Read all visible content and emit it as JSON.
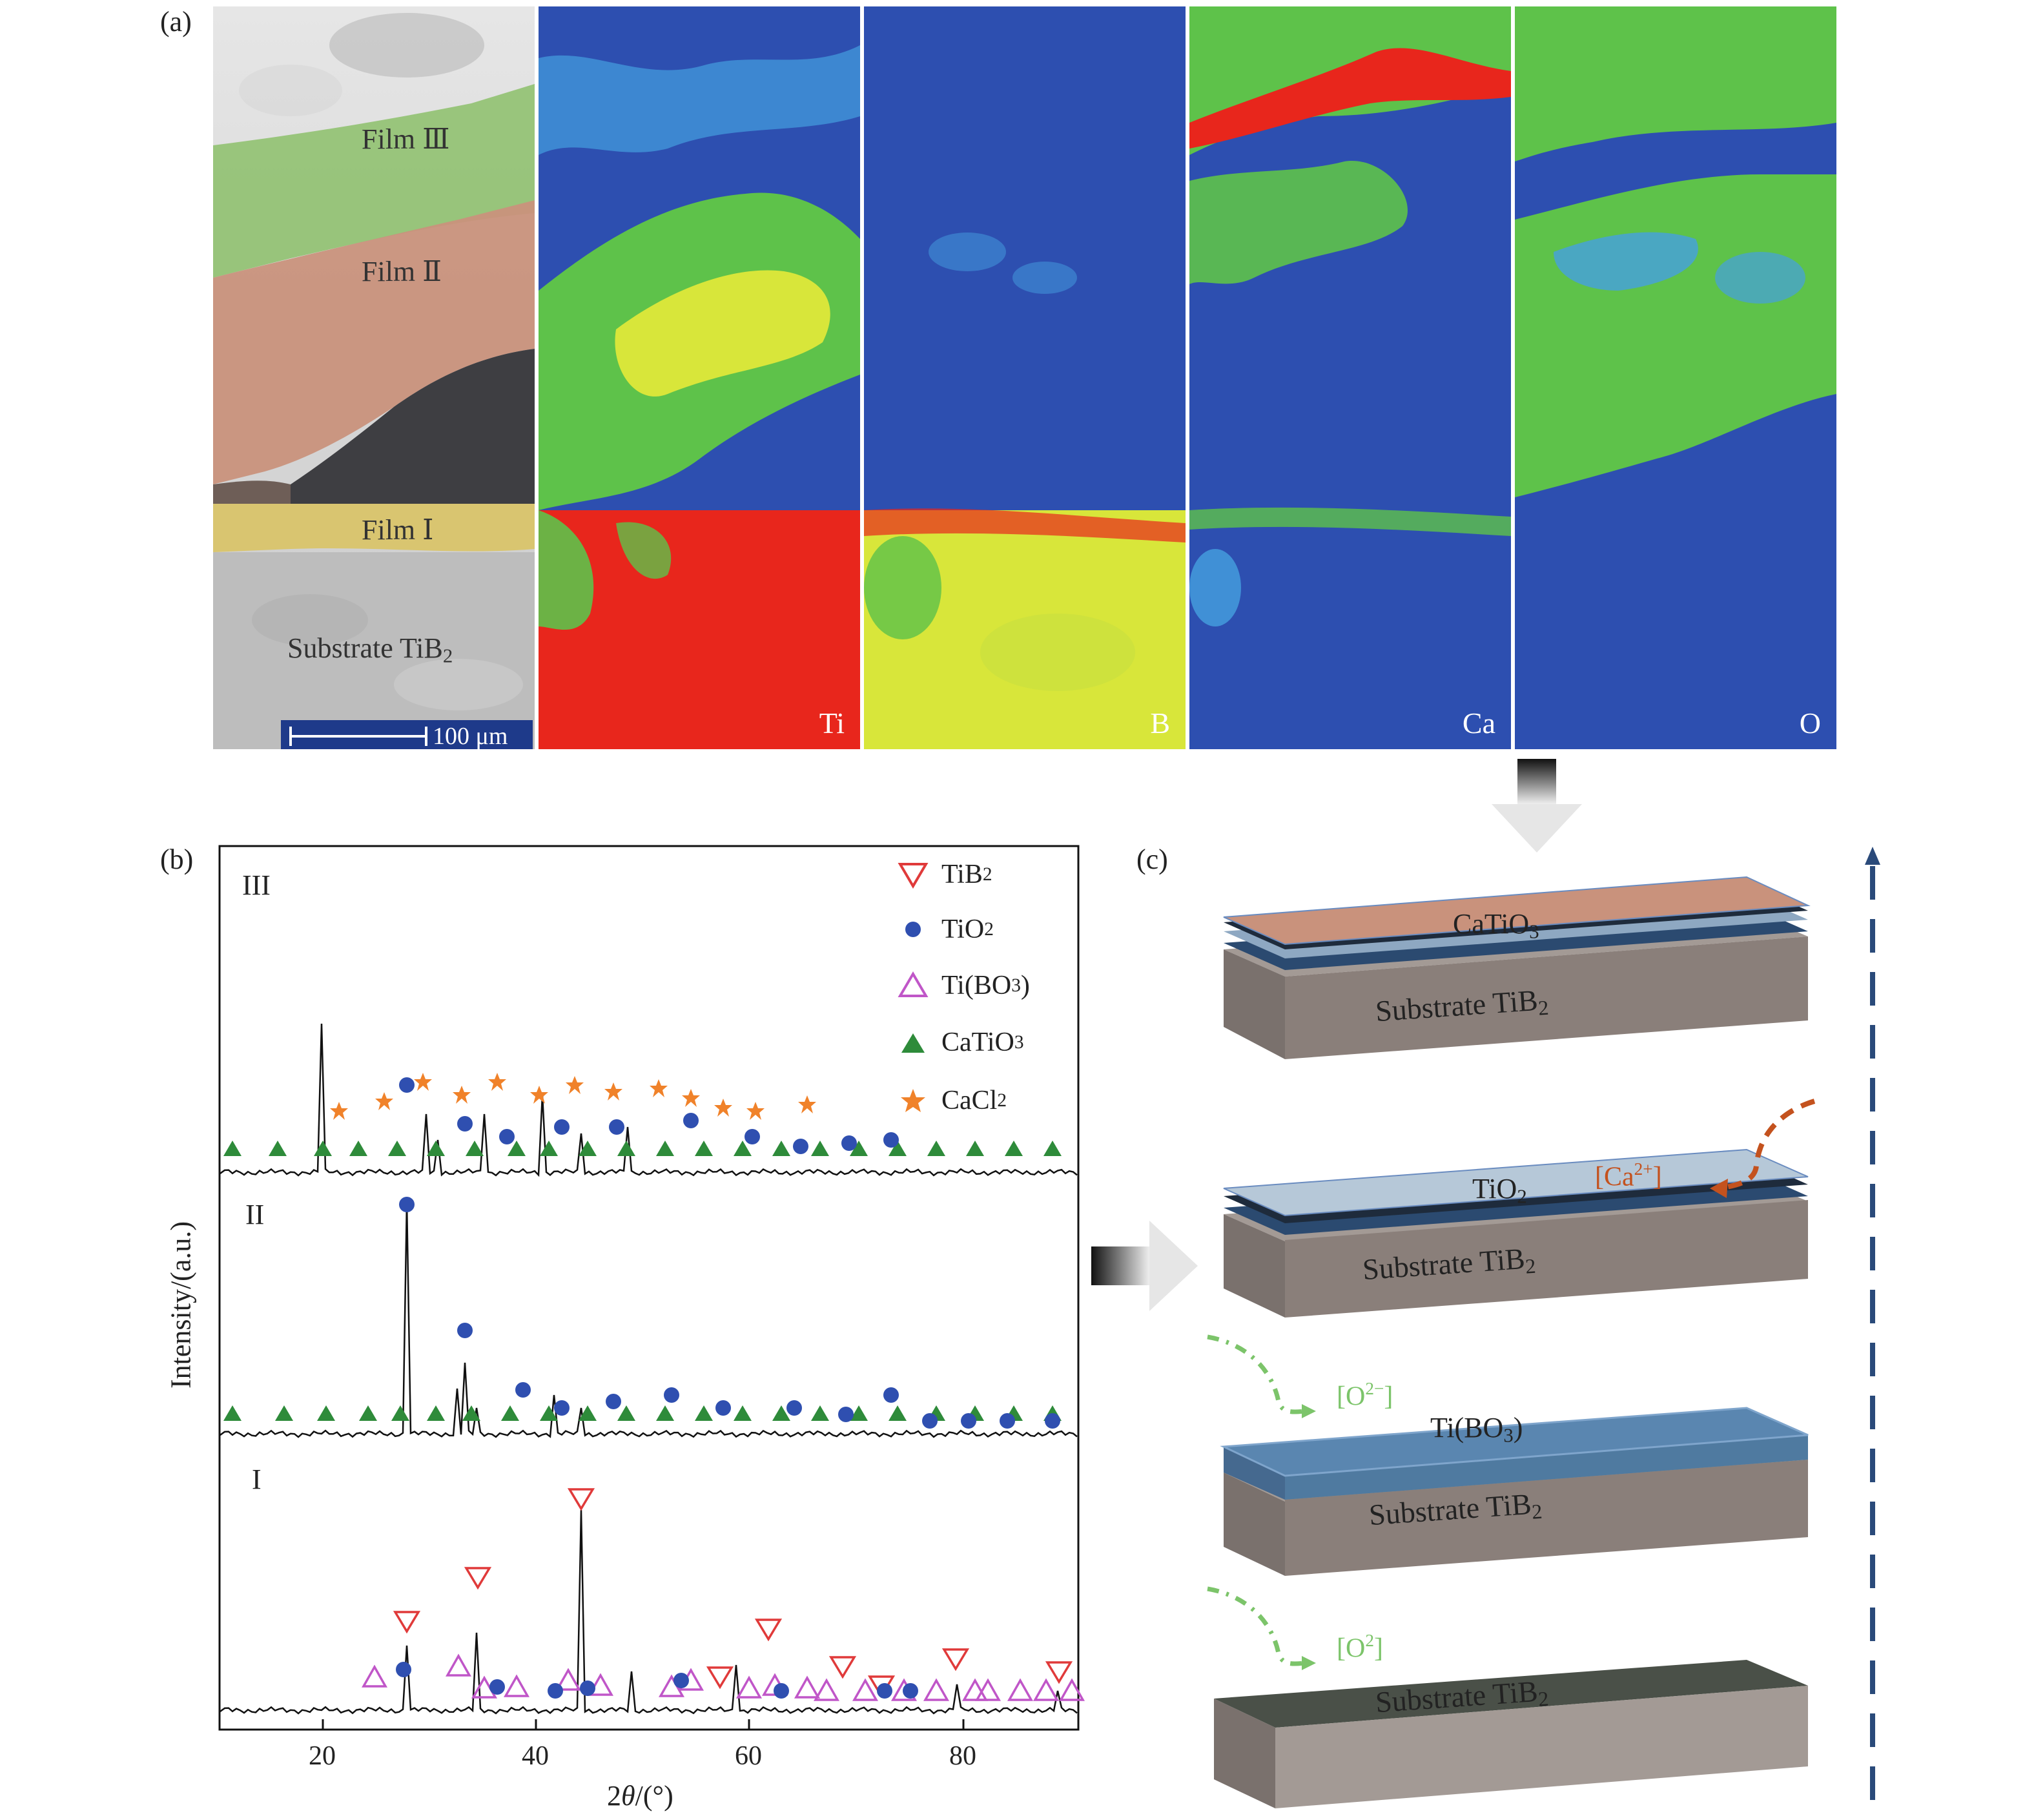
{
  "panel_a": {
    "label": "(a)",
    "films": [
      {
        "name": "Film Ⅲ"
      },
      {
        "name": "Film Ⅱ"
      },
      {
        "name": "Film Ⅰ"
      }
    ],
    "substrate": "Substrate TiB",
    "substrate_sub": "2",
    "scale_bar": "100 μm",
    "maps": [
      "Ti",
      "B",
      "Ca",
      "O"
    ]
  },
  "panel_b": {
    "label": "(b)",
    "ylabel": "Intensity/(a.u.)",
    "xlabel_pre": "2",
    "xlabel_theta": "θ",
    "xlabel_post": "/(°)",
    "x_ticks": [
      "20",
      "40",
      "60",
      "80"
    ],
    "tier_labels": [
      "III",
      "II",
      "I"
    ],
    "legend": [
      {
        "name": "TiB",
        "sub": "2",
        "post": "",
        "sub2": "",
        "post2": "",
        "symbol": "triangle-down-open",
        "color": "#e03a3a"
      },
      {
        "name": "TiO",
        "sub": "2",
        "post": "",
        "sub2": "",
        "post2": "",
        "symbol": "circle-filled",
        "color": "#2f4fb0"
      },
      {
        "name": "Ti(BO",
        "sub": "3",
        "post": ")",
        "sub2": "",
        "post2": "",
        "symbol": "triangle-up-open",
        "color": "#c056c8"
      },
      {
        "name": "CaTiO",
        "sub": "3",
        "post": "",
        "sub2": "",
        "post2": "",
        "symbol": "triangle-up-filled",
        "color": "#2e8b3a"
      },
      {
        "name": "CaCl",
        "sub": "2",
        "post": "",
        "sub2": "",
        "post2": "",
        "symbol": "star-filled",
        "color": "#f0822a"
      }
    ]
  },
  "panel_c": {
    "label": "(c)",
    "layers": [
      {
        "top_text": "CaTiO",
        "top_sub": "3",
        "substrate": "Substrate TiB",
        "substrate_sub": "2"
      },
      {
        "top_text": "TiO",
        "top_sub": "2",
        "substrate": "Substrate TiB",
        "substrate_sub": "2",
        "ion": "[Ca",
        "ion_sup": "2+",
        "ion_post": "]"
      },
      {
        "top_text": "Ti(BO",
        "top_sub": "3",
        "top_post": ")",
        "substrate": "Substrate TiB",
        "substrate_sub": "2",
        "ion": "[O",
        "ion_sup": "2−",
        "ion_post": "]"
      },
      {
        "substrate": "Substrate TiB",
        "substrate_sub": "2",
        "ion": "[O",
        "ion_sup": "2",
        "ion_post": "]"
      }
    ]
  },
  "colors": {
    "map_blue": "#2d4fb0",
    "map_green": "#5ec24a",
    "map_yellow": "#d8e63a",
    "map_red": "#e8261c",
    "film3": "#8cc06a",
    "film2": "#c9927c",
    "film1": "#d9c46a",
    "dash_blue": "#2a4a7a"
  }
}
